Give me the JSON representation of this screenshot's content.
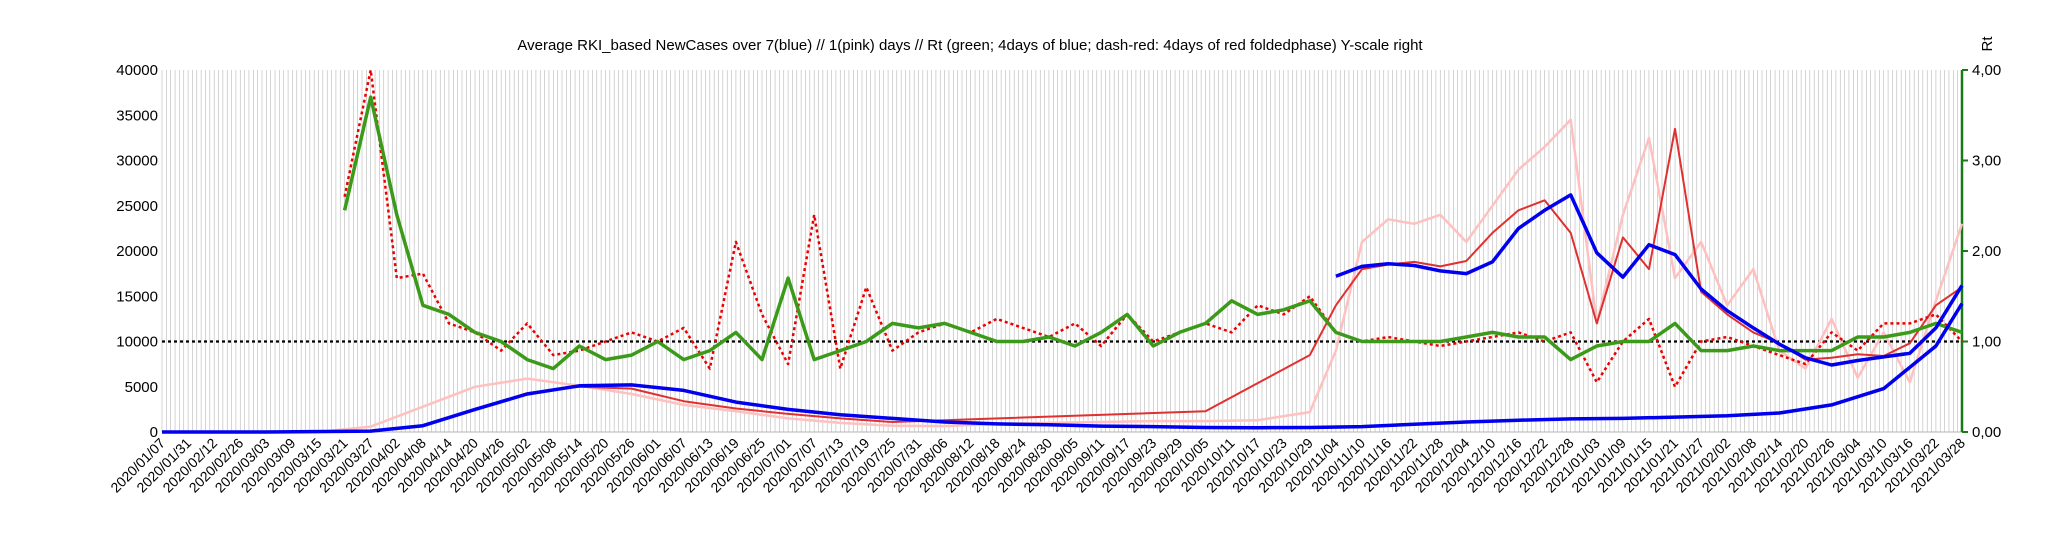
{
  "chart_data": {
    "type": "line",
    "title": "Average RKI_based NewCases over 7(blue) // 1(pink) days //  Rt (green; 4days of blue; dash-red: 4days of red foldedphase) Y-scale right",
    "y2label": "Rt",
    "ylim": [
      0,
      40000
    ],
    "y2lim": [
      0,
      4
    ],
    "yticks": [
      "0",
      "5000",
      "10000",
      "15000",
      "20000",
      "25000",
      "30000",
      "35000",
      "40000"
    ],
    "y2ticks": [
      "0,00",
      "1,00",
      "2,00",
      "3,00",
      "4,00"
    ],
    "reference_line_rt": 1.0,
    "grid": "vertical",
    "x_labels": [
      "2020/01/07",
      "2020/01/31",
      "2020/02/12",
      "2020/02/26",
      "2020/03/03",
      "2020/03/09",
      "2020/03/15",
      "2020/03/21",
      "2020/03/27",
      "2020/04/02",
      "2020/04/08",
      "2020/04/14",
      "2020/04/20",
      "2020/04/26",
      "2020/05/02",
      "2020/05/08",
      "2020/05/14",
      "2020/05/20",
      "2020/05/26",
      "2020/06/01",
      "2020/06/07",
      "2020/06/13",
      "2020/06/19",
      "2020/06/25",
      "2020/07/01",
      "2020/07/07",
      "2020/07/13",
      "2020/07/19",
      "2020/07/25",
      "2020/07/31",
      "2020/08/06",
      "2020/08/12",
      "2020/08/18",
      "2020/08/24",
      "2020/08/30",
      "2020/09/05",
      "2020/09/11",
      "2020/09/17",
      "2020/09/23",
      "2020/09/29",
      "2020/10/05",
      "2020/10/11",
      "2020/10/17",
      "2020/10/23",
      "2020/10/29",
      "2020/11/04",
      "2020/11/10",
      "2020/11/16",
      "2020/11/22",
      "2020/11/28",
      "2020/12/04",
      "2020/12/10",
      "2020/12/16",
      "2020/12/22",
      "2020/12/28",
      "2021/01/03",
      "2021/01/09",
      "2021/01/15",
      "2021/01/21",
      "2021/01/27",
      "2021/02/02",
      "2021/02/08",
      "2021/02/14",
      "2021/02/20",
      "2021/02/26",
      "2021/03/04",
      "2021/03/10",
      "2021/03/16",
      "2021/03/22",
      "2021/03/28"
    ],
    "series": [
      {
        "key": "cases7",
        "color": "#0000ee",
        "axis": "left",
        "x": [
          0,
          4,
          8,
          10,
          12,
          14,
          16,
          18,
          20,
          22,
          24,
          26,
          28,
          30,
          32,
          34,
          36,
          38,
          40,
          42,
          44,
          46,
          48,
          50,
          52,
          54,
          56,
          58,
          60,
          62,
          64,
          66,
          68,
          69
        ],
        "values": [
          0,
          0,
          100,
          700,
          2500,
          4200,
          5100,
          5200,
          4600,
          3300,
          2500,
          1900,
          1500,
          1100,
          900,
          800,
          650,
          600,
          500,
          480,
          500,
          600,
          850,
          1100,
          1300,
          1450,
          1500,
          1650,
          1800,
          2100,
          3000,
          4800,
          9500,
          14200
        ]
      },
      {
        "key": "cases7_late",
        "color": "#0000ee",
        "axis": "left",
        "x": [
          45,
          46,
          47,
          48,
          49,
          50,
          51,
          52,
          53,
          54,
          55,
          56,
          57,
          58,
          59,
          60,
          61,
          62,
          63,
          64,
          65,
          66,
          67,
          68,
          69
        ],
        "values": [
          17200,
          18300,
          18600,
          18400,
          17800,
          17500,
          18800,
          22500,
          24500,
          26200,
          19800,
          17100,
          20700,
          19600,
          15800,
          13400,
          11500,
          9700,
          8200,
          7400,
          7900,
          8300,
          8700,
          11500,
          16200
        ]
      },
      {
        "key": "cases1",
        "color": "#ffc0c0",
        "axis": "left",
        "x": [
          0,
          6,
          8,
          10,
          12,
          14,
          16,
          18,
          20,
          22,
          24,
          26,
          28,
          30,
          32,
          34,
          36,
          38,
          40,
          42,
          44,
          45,
          46,
          47,
          48,
          49,
          50,
          51,
          52,
          53,
          54,
          55,
          56,
          57,
          58,
          59,
          60,
          61,
          62,
          63,
          64,
          65,
          66,
          67,
          68,
          69
        ],
        "values": [
          0,
          0,
          600,
          2800,
          5000,
          5900,
          5100,
          4200,
          3000,
          2300,
          1500,
          1000,
          700,
          650,
          900,
          1000,
          1100,
          1200,
          1200,
          1300,
          2200,
          9000,
          21000,
          23500,
          23000,
          24000,
          21000,
          25000,
          29000,
          31500,
          34500,
          12000,
          24000,
          32500,
          17000,
          21000,
          14000,
          18000,
          9000,
          7000,
          12500,
          6000,
          11000,
          5500,
          14500,
          23000
        ]
      },
      {
        "key": "cases1_smooth",
        "color": "#e03030",
        "axis": "left",
        "x": [
          0,
          8,
          10,
          12,
          14,
          16,
          18,
          20,
          22,
          24,
          26,
          28,
          40,
          44,
          45,
          46,
          47,
          48,
          49,
          50,
          51,
          52,
          53,
          54,
          55,
          56,
          57,
          58,
          59,
          60,
          61,
          62,
          63,
          64,
          65,
          66,
          67,
          68,
          69
        ],
        "values": [
          0,
          100,
          700,
          2500,
          4300,
          5000,
          4800,
          3400,
          2600,
          2000,
          1500,
          1100,
          2300,
          8500,
          14000,
          18000,
          18500,
          18800,
          18300,
          18900,
          22000,
          24500,
          25600,
          22000,
          12000,
          21500,
          18000,
          33500,
          15500,
          13000,
          11000,
          9800,
          8000,
          8200,
          8600,
          8400,
          9800,
          14000,
          16000
        ]
      },
      {
        "key": "rt_folded",
        "color": "#ee0000",
        "axis": "right",
        "dashed": true,
        "x": [
          7,
          8,
          9,
          10,
          11,
          12,
          13,
          14,
          15,
          16,
          17,
          18,
          19,
          20,
          21,
          22,
          23,
          24,
          25,
          26,
          27,
          28,
          29,
          30,
          31,
          32,
          33,
          34,
          35,
          36,
          37,
          38,
          39,
          40,
          41,
          42,
          43,
          44,
          45,
          46,
          47,
          48,
          49,
          50,
          51,
          52,
          53,
          54,
          55,
          56,
          57,
          58,
          59,
          60,
          61,
          62,
          63,
          64,
          65,
          66,
          67,
          68,
          69
        ],
        "values": [
          2.6,
          4.0,
          1.7,
          1.75,
          1.2,
          1.1,
          0.9,
          1.2,
          0.85,
          0.9,
          1.0,
          1.1,
          1.0,
          1.15,
          0.7,
          2.1,
          1.3,
          0.75,
          2.4,
          0.7,
          1.6,
          0.9,
          1.1,
          1.2,
          1.1,
          1.25,
          1.15,
          1.05,
          1.2,
          0.95,
          1.3,
          1.0,
          1.1,
          1.2,
          1.1,
          1.4,
          1.3,
          1.5,
          1.1,
          1.0,
          1.05,
          1.0,
          0.95,
          1.0,
          1.05,
          1.1,
          1.0,
          1.1,
          0.55,
          1.0,
          1.25,
          0.5,
          1.0,
          1.05,
          0.95,
          0.85,
          0.75,
          1.1,
          0.9,
          1.2,
          1.2,
          1.3,
          1.0
        ]
      },
      {
        "key": "rt",
        "color": "#3c9a1a",
        "axis": "right",
        "x": [
          7,
          8,
          9,
          10,
          11,
          12,
          13,
          14,
          15,
          16,
          17,
          18,
          19,
          20,
          21,
          22,
          23,
          24,
          25,
          26,
          27,
          28,
          29,
          30,
          31,
          32,
          33,
          34,
          35,
          36,
          37,
          38,
          39,
          40,
          41,
          42,
          43,
          44,
          45,
          46,
          47,
          48,
          49,
          50,
          51,
          52,
          53,
          54,
          55,
          56,
          57,
          58,
          59,
          60,
          61,
          62,
          63,
          64,
          65,
          66,
          67,
          68,
          69
        ],
        "values": [
          2.45,
          3.7,
          2.4,
          1.4,
          1.3,
          1.1,
          1.0,
          0.8,
          0.7,
          0.95,
          0.8,
          0.85,
          1.0,
          0.8,
          0.9,
          1.1,
          0.8,
          1.7,
          0.8,
          0.9,
          1.0,
          1.2,
          1.15,
          1.2,
          1.1,
          1.0,
          1.0,
          1.05,
          0.95,
          1.1,
          1.3,
          0.95,
          1.1,
          1.2,
          1.45,
          1.3,
          1.35,
          1.45,
          1.1,
          1.0,
          1.0,
          1.0,
          1.0,
          1.05,
          1.1,
          1.05,
          1.05,
          0.8,
          0.95,
          1.0,
          1.0,
          1.2,
          0.9,
          0.9,
          0.95,
          0.9,
          0.9,
          0.9,
          1.05,
          1.05,
          1.1,
          1.2,
          1.1
        ]
      }
    ]
  }
}
